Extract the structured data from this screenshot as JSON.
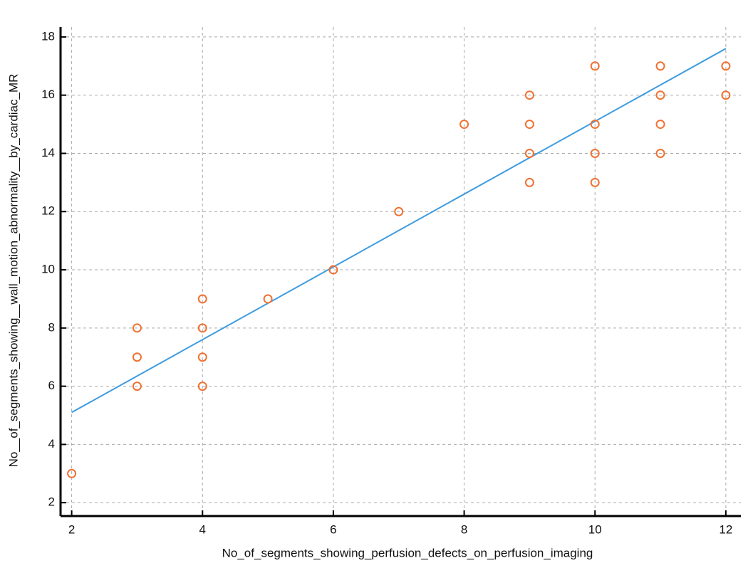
{
  "chart_data": {
    "type": "scatter",
    "x_label": "No_of_segments_showing_perfusion_defects_on_perfusion_imaging",
    "y_label": "No__of_segments_showing__wall_motion_abnormality__by_cardiac_MR",
    "x": [
      2,
      3,
      3,
      3,
      4,
      4,
      4,
      4,
      5,
      6,
      7,
      8,
      9,
      9,
      9,
      9,
      10,
      10,
      10,
      10,
      11,
      11,
      11,
      11,
      12,
      12
    ],
    "y": [
      3,
      8,
      7,
      6,
      9,
      8,
      7,
      6,
      9,
      10,
      12,
      15,
      16,
      15,
      14,
      13,
      17,
      15,
      14,
      13,
      17,
      16,
      15,
      14,
      17,
      16
    ],
    "color": "#f07030",
    "fit": {
      "x": [
        2,
        12
      ],
      "y": [
        5.1,
        17.6
      ],
      "color": "#3d9be0"
    },
    "xlim": [
      1.83,
      12.23
    ],
    "ylim": [
      1.54,
      18.34
    ],
    "xticks": [
      2,
      4,
      6,
      8,
      10,
      12
    ],
    "yticks": [
      2,
      4,
      6,
      8,
      10,
      12,
      14,
      16,
      18
    ],
    "grid": true
  }
}
